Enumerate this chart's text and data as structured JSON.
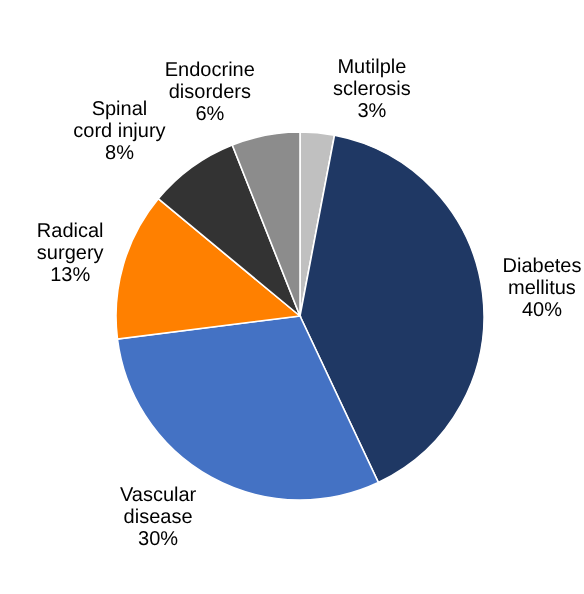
{
  "chart_data": {
    "type": "pie",
    "categories": [
      "Mutilple sclerosis",
      "Diabetes mellitus",
      "Vascular disease",
      "Radical surgery",
      "Spinal cord injury",
      "Endocrine disorders"
    ],
    "values": [
      3,
      40,
      30,
      13,
      8,
      6
    ],
    "value_labels": [
      "3%",
      "40%",
      "30%",
      "13%",
      "8%",
      "6%"
    ],
    "colors": [
      "#c0c0c0",
      "#1f3864",
      "#4472c4",
      "#ff8000",
      "#333333",
      "#8c8c8c"
    ]
  }
}
